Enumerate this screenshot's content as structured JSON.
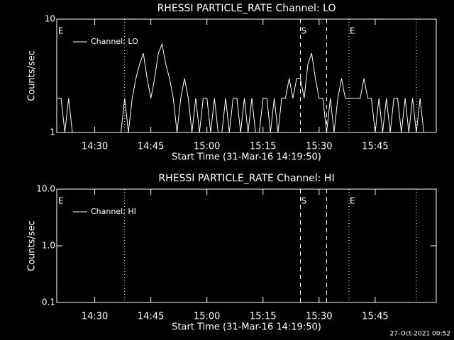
{
  "chart_data": [
    {
      "type": "line",
      "title": "RHESSI PARTICLE_RATE Channel: LO",
      "xlabel": "Start Time (31-Mar-16 14:19:50)",
      "ylabel": "Counts/sec",
      "log_y": true,
      "ylim": [
        1,
        10
      ],
      "yticks": [
        1,
        10
      ],
      "xlim": [
        "14:19:50",
        "16:01:20"
      ],
      "xticks": [
        "14:30",
        "14:45",
        "15:00",
        "15:15",
        "15:30",
        "15:45"
      ],
      "x": [
        "14:20",
        "14:21",
        "14:22",
        "14:23",
        "14:24",
        "14:25",
        "14:26",
        "14:27",
        "14:28",
        "14:29",
        "14:30",
        "14:31",
        "14:32",
        "14:33",
        "14:34",
        "14:35",
        "14:36",
        "14:37",
        "14:38",
        "14:39",
        "14:40",
        "14:41",
        "14:42",
        "14:43",
        "14:44",
        "14:45",
        "14:46",
        "14:47",
        "14:48",
        "14:49",
        "14:50",
        "14:51",
        "14:52",
        "14:53",
        "14:54",
        "14:55",
        "14:56",
        "14:57",
        "14:58",
        "14:59",
        "15:00",
        "15:01",
        "15:02",
        "15:03",
        "15:04",
        "15:05",
        "15:06",
        "15:07",
        "15:08",
        "15:09",
        "15:10",
        "15:11",
        "15:12",
        "15:13",
        "15:14",
        "15:15",
        "15:16",
        "15:17",
        "15:18",
        "15:19",
        "15:20",
        "15:21",
        "15:22",
        "15:23",
        "15:24",
        "15:25",
        "15:26",
        "15:27",
        "15:28",
        "15:29",
        "15:30",
        "15:31",
        "15:32",
        "15:33",
        "15:34",
        "15:35",
        "15:36",
        "15:37",
        "15:38",
        "15:39",
        "15:40",
        "15:41",
        "15:42",
        "15:43",
        "15:44",
        "15:45",
        "15:46",
        "15:47",
        "15:48",
        "15:49",
        "15:50",
        "15:51",
        "15:52",
        "15:53",
        "15:54",
        "15:55",
        "15:56",
        "15:57",
        "15:58",
        "15:59",
        "16:00",
        "16:01"
      ],
      "series": [
        {
          "name": "Channel: LO",
          "color": "#ffffff",
          "values": [
            2,
            2,
            1,
            2,
            1,
            1,
            1,
            1,
            1,
            1,
            1,
            1,
            1,
            1,
            1,
            1,
            1,
            1,
            2,
            1,
            2,
            3,
            4,
            5,
            3,
            2,
            3,
            5,
            6,
            4,
            3,
            2,
            1,
            2,
            3,
            2,
            1,
            2,
            1,
            2,
            2,
            1,
            2,
            1,
            1,
            2,
            1,
            2,
            2,
            1,
            2,
            1,
            2,
            1,
            1,
            2,
            2,
            1,
            2,
            1,
            2,
            2,
            3,
            2,
            3,
            3,
            2,
            4,
            5,
            3,
            2,
            2,
            1,
            2,
            1,
            2,
            3,
            2,
            2,
            2,
            2,
            2,
            3,
            2,
            2,
            1,
            2,
            1,
            2,
            1,
            2,
            2,
            1,
            2,
            1,
            2,
            1,
            2,
            1,
            1,
            1,
            1
          ]
        }
      ],
      "vlines": [
        {
          "x": "14:38",
          "style": "dotted"
        },
        {
          "x": "15:25",
          "style": "dashed"
        },
        {
          "x": "15:32",
          "style": "dashed"
        },
        {
          "x": "15:38",
          "style": "dotted"
        },
        {
          "x": "15:56",
          "style": "dotted"
        }
      ],
      "flags": [
        {
          "x": "14:20",
          "label": "E"
        },
        {
          "x": "15:25",
          "label": "S"
        },
        {
          "x": "15:38",
          "label": "E"
        }
      ]
    },
    {
      "type": "line",
      "title": "RHESSI PARTICLE_RATE Channel: HI",
      "xlabel": "Start Time (31-Mar-16 14:19:50)",
      "ylabel": "Counts/sec",
      "log_y": true,
      "ylim": [
        0.1,
        10
      ],
      "yticks": [
        0.1,
        {
          "value": 1,
          "label": "1.0"
        },
        {
          "value": 10,
          "label": "10.0"
        }
      ],
      "xlim": [
        "14:19:50",
        "16:01:20"
      ],
      "xticks": [
        "14:30",
        "14:45",
        "15:00",
        "15:15",
        "15:30",
        "15:45"
      ],
      "x": [],
      "series": [
        {
          "name": "Channel: HI",
          "color": "#ffffff",
          "values": []
        }
      ],
      "vlines": [
        {
          "x": "14:38",
          "style": "dotted"
        },
        {
          "x": "15:25",
          "style": "dashed"
        },
        {
          "x": "15:32",
          "style": "dashed"
        },
        {
          "x": "15:38",
          "style": "dotted"
        },
        {
          "x": "15:56",
          "style": "dotted"
        }
      ],
      "flags": [
        {
          "x": "14:20",
          "label": "E"
        },
        {
          "x": "15:25",
          "label": "S"
        },
        {
          "x": "15:38",
          "label": "E"
        }
      ]
    }
  ],
  "footer": "27-Oct-2021 00:52"
}
